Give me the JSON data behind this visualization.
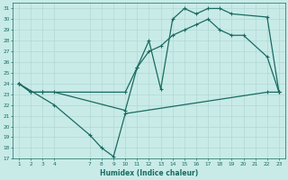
{
  "background_color": "#c8ebe8",
  "grid_color": "#b0d8d4",
  "line_color": "#1a6b60",
  "xlabel": "Humidex (Indice chaleur)",
  "xlim": [
    0.5,
    23.5
  ],
  "ylim": [
    17,
    31.5
  ],
  "yticks": [
    17,
    18,
    19,
    20,
    21,
    22,
    23,
    24,
    25,
    26,
    27,
    28,
    29,
    30,
    31
  ],
  "xticks": [
    1,
    2,
    3,
    4,
    7,
    8,
    9,
    10,
    11,
    12,
    13,
    14,
    15,
    16,
    17,
    18,
    19,
    20,
    21,
    22,
    23
  ],
  "line1_x": [
    1,
    2,
    3,
    4,
    10,
    11,
    12,
    13,
    14,
    15,
    16,
    17,
    18,
    19,
    22,
    23
  ],
  "line1_y": [
    24,
    23.2,
    23.2,
    23.2,
    21.5,
    25.5,
    28.0,
    23.5,
    30.0,
    31.0,
    30.5,
    31.0,
    31.0,
    30.5,
    30.2,
    23.2
  ],
  "line2_x": [
    1,
    2,
    3,
    10,
    11,
    12,
    13,
    14,
    15,
    16,
    17,
    18,
    19,
    20,
    22,
    23
  ],
  "line2_y": [
    24,
    23.2,
    23.2,
    23.2,
    25.5,
    27.0,
    27.5,
    28.5,
    29.0,
    29.5,
    30.0,
    29.0,
    28.5,
    28.5,
    26.5,
    23.2
  ],
  "line3_x": [
    1,
    4,
    7,
    8,
    9,
    10,
    22,
    23
  ],
  "line3_y": [
    24,
    22,
    19.2,
    18.0,
    17.2,
    21.2,
    23.2,
    23.2
  ]
}
